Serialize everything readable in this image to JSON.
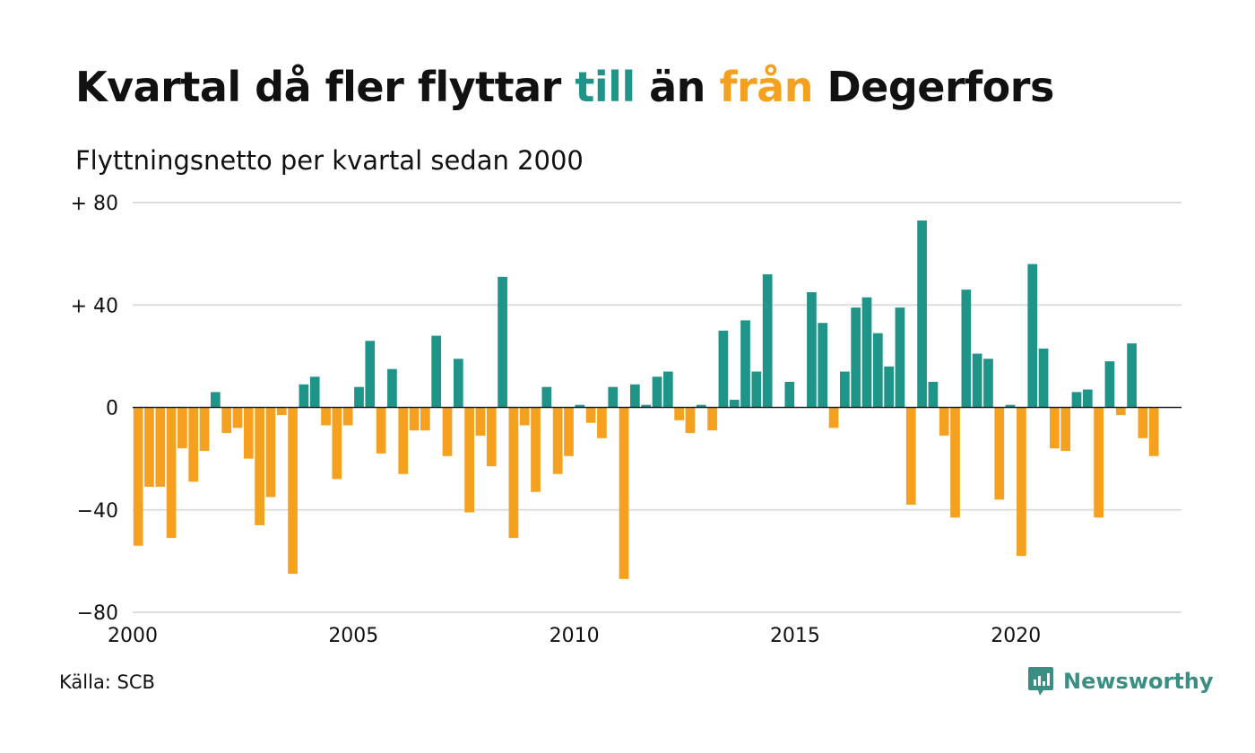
{
  "title": {
    "part1": "Kvartal då fler flyttar ",
    "till": "till",
    "part2": " än ",
    "fran": "från",
    "part3": " Degerfors"
  },
  "subtitle": "Flyttningsnetto per kvartal sedan 2000",
  "source": "Källa: SCB",
  "brand": "Newsworthy",
  "colors": {
    "positive": "#1f9488",
    "negative": "#f5a11f",
    "grid": "#dddddd",
    "logo": "#3a8f82"
  },
  "chart_data": {
    "type": "bar",
    "title": "Kvartal då fler flyttar till än från Degerfors",
    "subtitle": "Flyttningsnetto per kvartal sedan 2000",
    "xlabel": "",
    "ylabel": "",
    "x_start": 2000,
    "quarters_per_year": 4,
    "xlim": [
      2000,
      2023.75
    ],
    "ylim": [
      -80,
      80
    ],
    "yticks": [
      80,
      40,
      0,
      -40,
      -80
    ],
    "ytick_labels": [
      "+ 80",
      "+ 40",
      "0",
      "−40",
      "−80"
    ],
    "xticks": [
      2000,
      2005,
      2010,
      2015,
      2020
    ],
    "xtick_labels": [
      "2000",
      "2005",
      "2010",
      "2015",
      "2020"
    ],
    "grid": true,
    "values": [
      -54,
      -31,
      -31,
      -51,
      -16,
      -29,
      -17,
      6,
      -10,
      -8,
      -20,
      -46,
      -35,
      -3,
      -65,
      9,
      12,
      -7,
      -28,
      -7,
      8,
      26,
      -18,
      15,
      -26,
      -9,
      -9,
      28,
      -19,
      19,
      -41,
      -11,
      -23,
      51,
      -51,
      -7,
      -33,
      8,
      -26,
      -19,
      1,
      -6,
      -12,
      8,
      -67,
      9,
      1,
      12,
      14,
      -5,
      -10,
      1,
      -9,
      30,
      3,
      34,
      14,
      52,
      0,
      10,
      0,
      45,
      33,
      -8,
      14,
      39,
      43,
      29,
      16,
      39,
      -38,
      73,
      10,
      -11,
      -43,
      46,
      21,
      19,
      -36,
      1,
      -58,
      56,
      23,
      -16,
      -17,
      6,
      7,
      -43,
      18,
      -3,
      25,
      -12,
      -19
    ]
  }
}
